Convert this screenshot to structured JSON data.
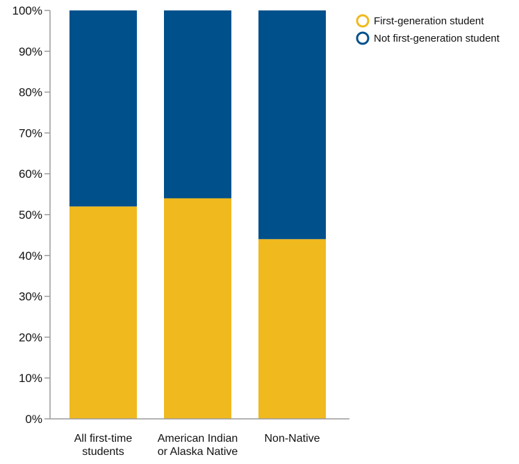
{
  "chart_data": {
    "type": "bar",
    "stacked": true,
    "categories": [
      "All first-time students",
      "American Indian or Alaska Native",
      "Non-Native"
    ],
    "category_label_lines": [
      [
        "All first-time",
        "students"
      ],
      [
        "American Indian",
        "or Alaska Native"
      ],
      [
        "Non-Native"
      ]
    ],
    "series": [
      {
        "name": "First-generation student",
        "values": [
          52,
          54,
          44
        ],
        "color": "#f0b91e"
      },
      {
        "name": "Not first-generation student",
        "values": [
          48,
          46,
          56
        ],
        "color": "#00508c"
      }
    ],
    "y_ticks": [
      "0%",
      "10%",
      "20%",
      "30%",
      "40%",
      "50%",
      "60%",
      "70%",
      "80%",
      "90%",
      "100%"
    ],
    "ylim": [
      0,
      100
    ],
    "y_unit": "%",
    "title": "",
    "xlabel": "",
    "ylabel": "",
    "grid": false,
    "legend_position": "top-right"
  }
}
